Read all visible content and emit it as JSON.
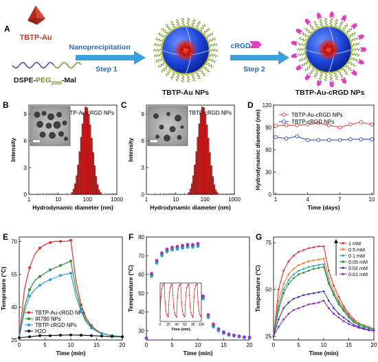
{
  "panel_a": {
    "letter": "A",
    "drug": "TBTP-Au",
    "lipid_prefix": "DSPE-",
    "lipid_peg": "PEG",
    "lipid_sub": "2000",
    "lipid_suffix": "-Mal",
    "step1_title": "Nanoprecipitation",
    "step1_label": "Step 1",
    "step2_title": "cRGD",
    "step2_label": "Step 2",
    "np1_label": "TBTP-Au  NPs",
    "np2_label": "TBTP-Au-cRGD  NPs",
    "colors": {
      "drug": "#c0392b",
      "peg": "#6b8e23",
      "lipid": "#3a3aa8",
      "arrow": "#3aa0d8",
      "crgd": "#e040c0"
    }
  },
  "chart_data": [
    {
      "panel": "B",
      "type": "bar",
      "legend": "TBTP-Au-cRGD NPs",
      "xlabel": "Hydrodynamic diameter (nm)",
      "ylabel": "Intensity",
      "x_scale": "log",
      "xlim": [
        1,
        1000
      ],
      "ylim": [
        0,
        10
      ],
      "x_ticks": [
        "1",
        "10",
        "100",
        "1000"
      ],
      "y_ticks": [
        "0",
        "3",
        "6",
        "9"
      ],
      "bar_color": "#cc1f1f",
      "x": [
        30,
        34,
        38,
        43,
        48,
        54,
        61,
        68,
        77,
        86,
        97,
        109,
        122,
        138,
        155,
        174,
        195,
        220,
        247,
        278
      ],
      "values": [
        0.2,
        0.6,
        1.2,
        2.1,
        3.3,
        4.8,
        6.4,
        7.9,
        9.1,
        9.8,
        9.7,
        9.0,
        7.8,
        6.3,
        4.7,
        3.2,
        2.0,
        1.1,
        0.5,
        0.2
      ]
    },
    {
      "panel": "C",
      "type": "bar",
      "legend": "TBTP-cRGD NPs",
      "xlabel": "Hydrodynamic diameter (nm)",
      "ylabel": "Intensity",
      "x_scale": "log",
      "xlim": [
        1,
        1000
      ],
      "ylim": [
        0,
        10
      ],
      "x_ticks": [
        "1",
        "10",
        "100",
        "1000"
      ],
      "y_ticks": [
        "0",
        "3",
        "6",
        "9"
      ],
      "bar_color": "#cc1f1f",
      "x": [
        28,
        32,
        36,
        40,
        45,
        51,
        57,
        64,
        72,
        81,
        91,
        102,
        115,
        129,
        145,
        163,
        183,
        206,
        231,
        260
      ],
      "values": [
        0.2,
        0.6,
        1.2,
        2.1,
        3.3,
        4.8,
        6.4,
        7.9,
        9.1,
        9.8,
        9.7,
        9.0,
        7.8,
        6.3,
        4.7,
        3.2,
        2.0,
        1.1,
        0.5,
        0.2
      ]
    },
    {
      "panel": "D",
      "type": "line",
      "xlabel": "Time (days)",
      "ylabel": "Hydrodynamic diameter (nm)",
      "xlim": [
        1,
        10
      ],
      "ylim": [
        0,
        120
      ],
      "x_ticks": [
        "1",
        "4",
        "7",
        "10"
      ],
      "y_ticks": [
        "0",
        "30",
        "60",
        "90",
        "120"
      ],
      "x": [
        1,
        2,
        3,
        4,
        5,
        6,
        7,
        8,
        9,
        10
      ],
      "series": [
        {
          "name": "TBTP-Au-cRGD NPs",
          "color": "#e03030",
          "values": [
            92,
            93,
            93,
            94,
            96,
            93,
            90,
            94,
            97,
            94
          ]
        },
        {
          "name": "TBTP-cRGD NPs",
          "color": "#2f3ab8",
          "values": [
            77,
            75,
            78,
            73,
            73,
            73,
            73,
            74,
            74,
            74
          ]
        }
      ]
    },
    {
      "panel": "E",
      "type": "line",
      "xlabel": "Time (min)",
      "ylabel": "Temprature (°C)",
      "xlim": [
        0,
        20
      ],
      "ylim": [
        25,
        72
      ],
      "x_ticks": [
        "0",
        "5",
        "10",
        "15",
        "20"
      ],
      "y_ticks": [
        "25",
        "40",
        "55",
        "70"
      ],
      "series": [
        {
          "name": "TBTP-Au-cRGD NPs",
          "color": "#e03030",
          "x": [
            0,
            1,
            2,
            3,
            4,
            5,
            6,
            7,
            8,
            9,
            10,
            11,
            12,
            13,
            14,
            15,
            16,
            17,
            18,
            19,
            20
          ],
          "values": [
            26,
            48,
            58,
            64,
            67,
            68.5,
            69.5,
            70,
            70,
            70,
            70.5,
            52,
            41,
            35,
            31.5,
            29.5,
            28,
            27.5,
            27,
            26.8,
            26.5
          ]
        },
        {
          "name": "IR780 NPs",
          "color": "#2e8b3a",
          "x": [
            0,
            1,
            2,
            3,
            4,
            5,
            6,
            7,
            8,
            9,
            10,
            11,
            12,
            13,
            14,
            15,
            16,
            17,
            18,
            19,
            20
          ],
          "values": [
            26,
            40,
            48,
            52,
            54,
            55.5,
            57,
            58,
            59,
            60,
            61,
            48,
            39,
            34,
            31,
            29,
            28,
            27.5,
            27,
            26.8,
            26.5
          ]
        },
        {
          "name": "TBTP-cRGD NPs",
          "color": "#2aa0d8",
          "x": [
            0,
            1,
            2,
            3,
            4,
            5,
            6,
            7,
            8,
            9,
            10,
            11,
            12,
            13,
            14,
            15,
            16,
            17,
            18,
            19,
            20
          ],
          "values": [
            26,
            38,
            45,
            48,
            50,
            51.5,
            52.5,
            53.5,
            54.5,
            55,
            55.5,
            45,
            38,
            33,
            30.5,
            29,
            28,
            27.5,
            27,
            26.8,
            26.5
          ]
        },
        {
          "name": "H2O",
          "color": "#111111",
          "x": [
            0,
            2,
            4,
            6,
            8,
            10,
            12,
            14,
            16,
            18,
            20
          ],
          "values": [
            26,
            26.5,
            27,
            27,
            27.2,
            27.3,
            27.2,
            27,
            26.8,
            26.6,
            26.5
          ]
        }
      ]
    },
    {
      "panel": "F",
      "type": "scatter",
      "xlabel": "Time (min)",
      "ylabel": "Temperature (°C)",
      "xlim": [
        0,
        20
      ],
      "ylim": [
        25,
        80
      ],
      "x_ticks": [
        "0",
        "5",
        "10",
        "15",
        "20"
      ],
      "y_ticks": [
        "30",
        "40",
        "50",
        "60",
        "70",
        "80"
      ],
      "x": [
        0,
        1,
        2,
        3,
        4,
        5,
        6,
        7,
        8,
        9,
        10,
        11,
        12,
        13,
        14,
        15,
        16,
        17,
        18,
        19,
        20
      ],
      "series": [
        {
          "color": "#e03030",
          "values": [
            26,
            60,
            67,
            71,
            73,
            74,
            74.5,
            75,
            75.5,
            75.5,
            76,
            48,
            38,
            33,
            30.5,
            29,
            28,
            27.5,
            27,
            26.5,
            26.3
          ]
        },
        {
          "color": "#2e8b3a",
          "values": [
            26,
            59.5,
            66.5,
            70.5,
            72.5,
            73.5,
            74,
            74.5,
            75,
            75,
            75.5,
            47.5,
            37.5,
            32.5,
            30,
            28.8,
            27.8,
            27.3,
            26.8,
            26.4,
            26.2
          ]
        },
        {
          "color": "#2aa0d8",
          "values": [
            26,
            59,
            66,
            70,
            72,
            73,
            73.5,
            74,
            74.5,
            74.5,
            75,
            47,
            37,
            32,
            30,
            28.6,
            27.6,
            27.1,
            26.7,
            26.3,
            26.1
          ]
        },
        {
          "color": "#9b30c8",
          "values": [
            26,
            60.5,
            67.5,
            71.5,
            73.5,
            74.5,
            75,
            75.5,
            76,
            76,
            76.5,
            48.5,
            38.5,
            33.5,
            31,
            29.3,
            28.2,
            27.6,
            27.1,
            26.6,
            26.4
          ]
        }
      ],
      "inset": {
        "xlabel": "Time (min)",
        "xlim": [
          0,
          100
        ],
        "ylim": [
          20,
          75
        ],
        "x_ticks": [
          "0",
          "20",
          "40",
          "60",
          "80",
          "100"
        ],
        "color": "#e03030",
        "cycles": 5
      }
    },
    {
      "panel": "G",
      "type": "line",
      "xlabel": "Time (min)",
      "ylabel": "Temperature (°C)",
      "xlim": [
        0,
        20
      ],
      "ylim": [
        23,
        78
      ],
      "x_ticks": [
        "0",
        "5",
        "10",
        "15",
        "20"
      ],
      "y_ticks": [
        "25",
        "50",
        "75"
      ],
      "x": [
        0,
        1,
        2,
        3,
        4,
        5,
        6,
        7,
        8,
        9,
        10,
        11,
        12,
        13,
        14,
        15,
        16,
        17,
        18,
        19,
        20
      ],
      "series": [
        {
          "name": "1 mM",
          "color": "#e03030",
          "values": [
            25,
            50,
            60,
            65,
            68,
            70,
            71,
            72,
            72.5,
            73,
            73,
            60,
            52,
            46,
            41,
            37,
            34,
            32,
            31,
            30,
            29
          ]
        },
        {
          "name": "0.5 mM",
          "color": "#f08030",
          "values": [
            25,
            44,
            53,
            58,
            61,
            63,
            64,
            65,
            65.5,
            66,
            66.5,
            56,
            49,
            44,
            40,
            36,
            33.5,
            32,
            31,
            30,
            29
          ]
        },
        {
          "name": "0.1 mM",
          "color": "#2aa8a8",
          "values": [
            25,
            41,
            50,
            55,
            58,
            60,
            61,
            62,
            62.5,
            63,
            63.5,
            54,
            47.5,
            43,
            39,
            35.5,
            33,
            31.5,
            30.5,
            29.5,
            28.8
          ]
        },
        {
          "name": "0.05 mM",
          "color": "#2e8b3a",
          "values": [
            25,
            39,
            48,
            53,
            56,
            58,
            59,
            60,
            61,
            61.5,
            62,
            53,
            47,
            42,
            38.5,
            35,
            32.5,
            31,
            30,
            29.3,
            28.6
          ]
        },
        {
          "name": "0.02 mM",
          "color": "#2f3ab8",
          "values": [
            25,
            34,
            40,
            43,
            45,
            46,
            47,
            47.5,
            48,
            48.5,
            49,
            44,
            40,
            37,
            35,
            33,
            31,
            30,
            29.2,
            28.5,
            28
          ]
        },
        {
          "name": "0.01 mM",
          "color": "#8a2fb8",
          "values": [
            25,
            30,
            34,
            37,
            39,
            40,
            41,
            42,
            42.5,
            43,
            44,
            40,
            37,
            35,
            33,
            31.5,
            30.5,
            29.5,
            28.8,
            28.2,
            27.8
          ]
        }
      ],
      "arrow_color": "#111111"
    }
  ],
  "panel_letters": [
    "B",
    "C",
    "D",
    "E",
    "F",
    "G"
  ]
}
